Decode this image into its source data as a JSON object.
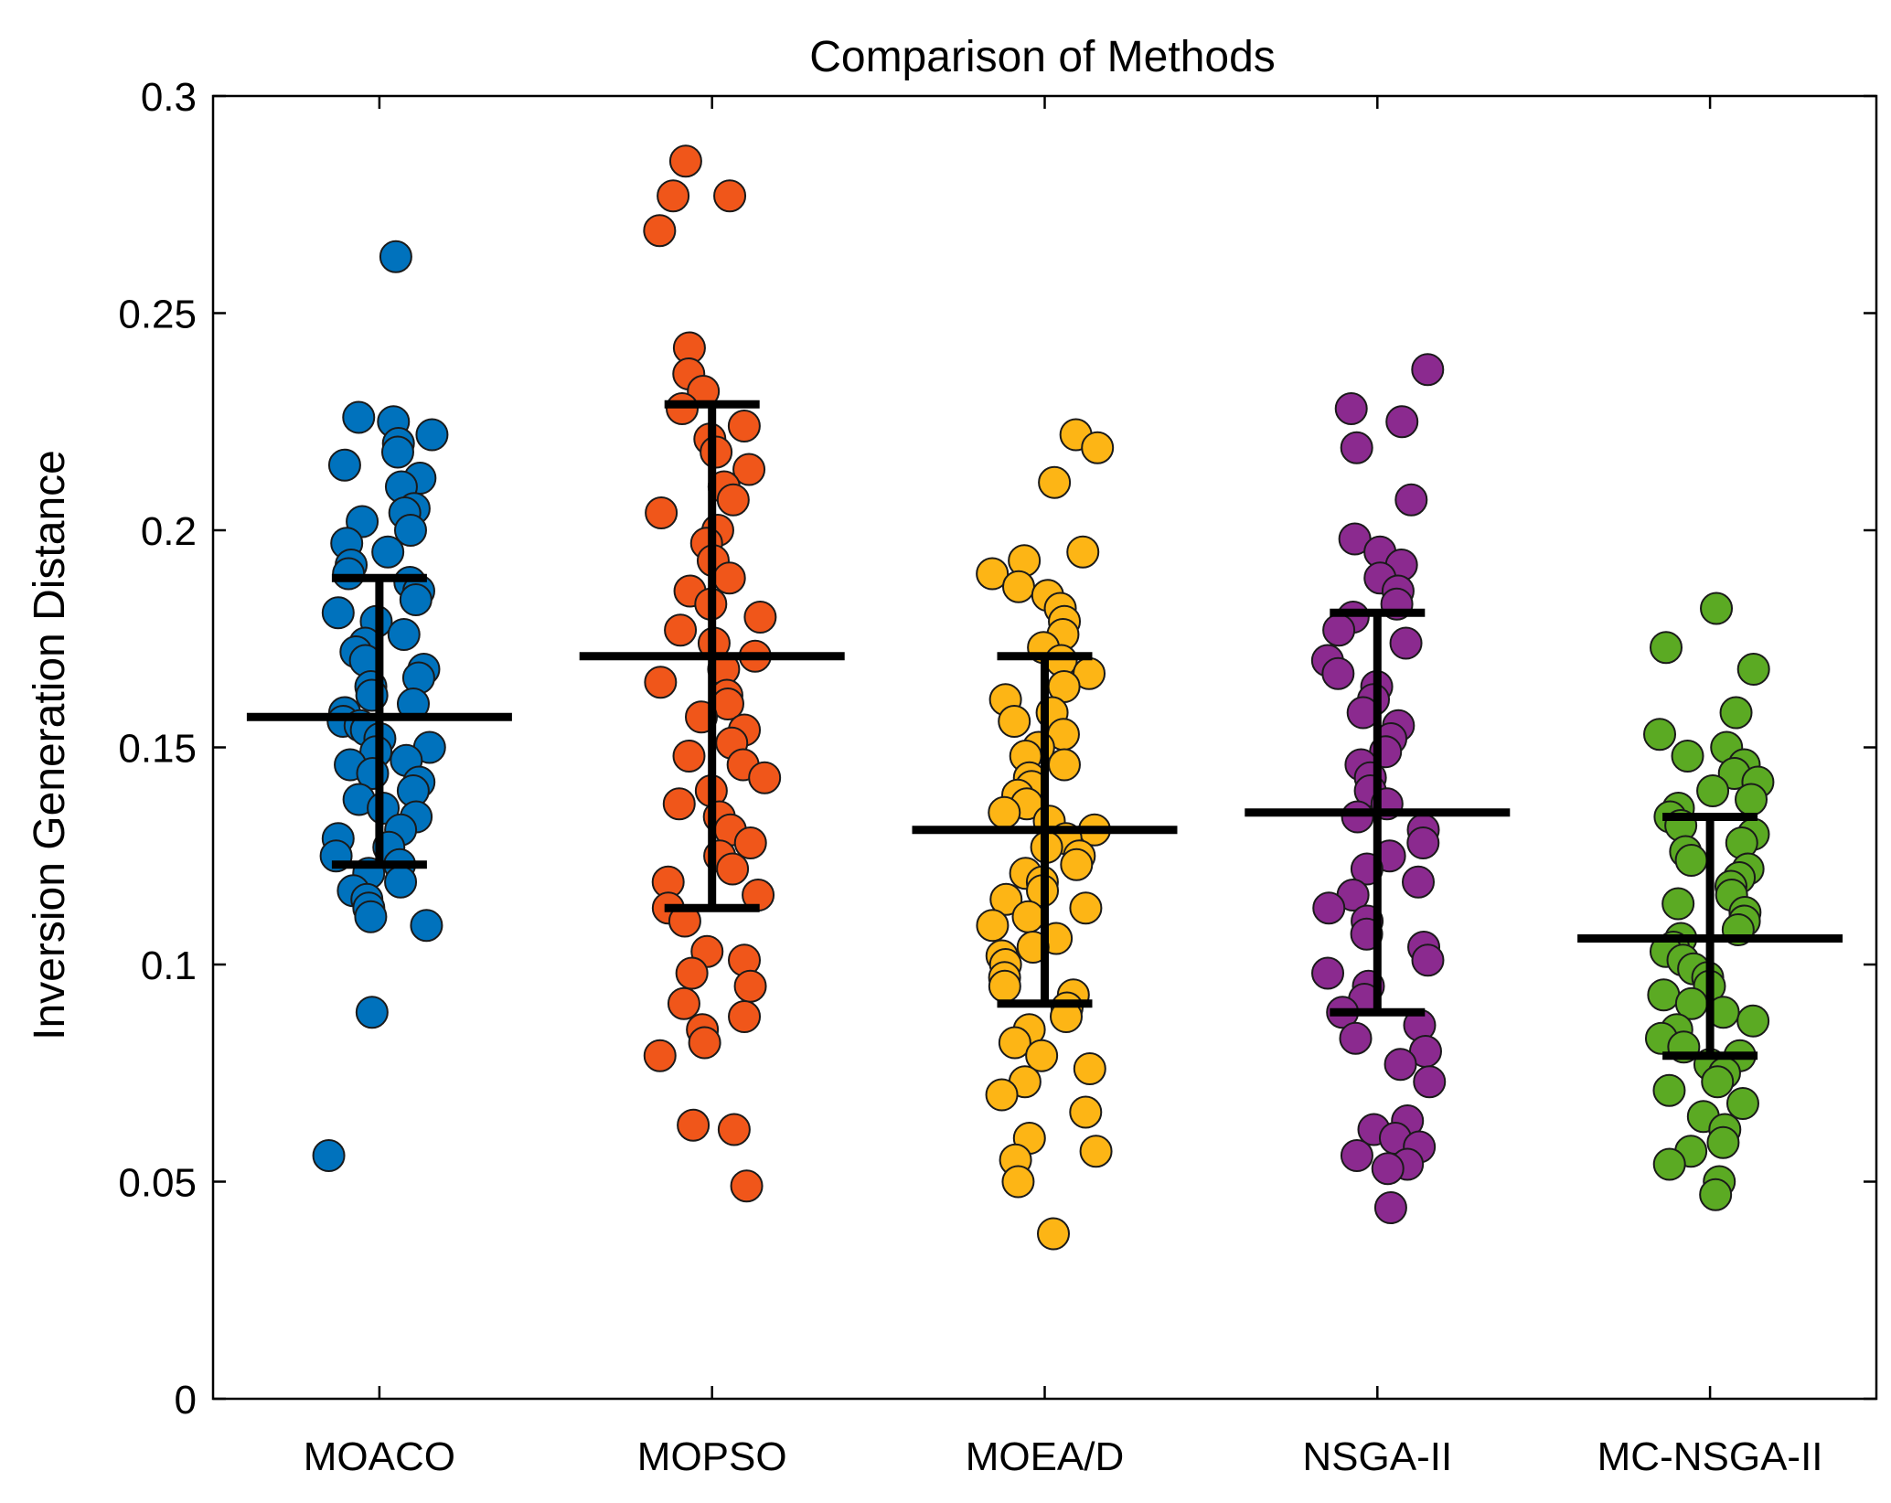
{
  "chart_data": {
    "type": "scatter",
    "title": "Comparison of Methods",
    "xlabel": "",
    "ylabel": "Inversion Generation Distance",
    "ylim": [
      0,
      0.3
    ],
    "yticks": [
      0,
      0.05,
      0.1,
      0.15,
      0.2,
      0.25,
      0.3
    ],
    "ytick_labels": [
      "0",
      "0.05",
      "0.1",
      "0.15",
      "0.2",
      "0.25",
      "0.3"
    ],
    "categories": [
      "MOACO",
      "MOPSO",
      "MOEA/D",
      "NSGA-II",
      "MC-NSGA-II"
    ],
    "grid": false,
    "legend": "none",
    "series": [
      {
        "category": "MOACO",
        "color": "#0072BD",
        "mean": 0.157,
        "sd_upper": 0.189,
        "sd_lower": 0.123,
        "values": [
          0.263,
          0.226,
          0.225,
          0.222,
          0.22,
          0.218,
          0.215,
          0.212,
          0.21,
          0.205,
          0.204,
          0.202,
          0.2,
          0.197,
          0.195,
          0.192,
          0.19,
          0.188,
          0.186,
          0.184,
          0.181,
          0.179,
          0.176,
          0.174,
          0.172,
          0.17,
          0.168,
          0.166,
          0.164,
          0.162,
          0.16,
          0.158,
          0.156,
          0.155,
          0.154,
          0.152,
          0.15,
          0.149,
          0.147,
          0.146,
          0.144,
          0.142,
          0.14,
          0.138,
          0.136,
          0.134,
          0.131,
          0.129,
          0.127,
          0.125,
          0.123,
          0.121,
          0.119,
          0.117,
          0.115,
          0.113,
          0.111,
          0.109,
          0.089,
          0.056
        ]
      },
      {
        "category": "MOPSO",
        "color": "#F0561A",
        "mean": 0.171,
        "sd_upper": 0.229,
        "sd_lower": 0.113,
        "values": [
          0.285,
          0.277,
          0.277,
          0.269,
          0.242,
          0.236,
          0.232,
          0.228,
          0.224,
          0.221,
          0.218,
          0.214,
          0.21,
          0.207,
          0.204,
          0.2,
          0.197,
          0.193,
          0.189,
          0.186,
          0.183,
          0.18,
          0.177,
          0.174,
          0.171,
          0.168,
          0.165,
          0.162,
          0.16,
          0.157,
          0.154,
          0.151,
          0.148,
          0.146,
          0.143,
          0.14,
          0.137,
          0.134,
          0.131,
          0.128,
          0.125,
          0.122,
          0.119,
          0.116,
          0.113,
          0.11,
          0.103,
          0.101,
          0.098,
          0.095,
          0.091,
          0.088,
          0.085,
          0.082,
          0.079,
          0.063,
          0.062,
          0.049
        ]
      },
      {
        "category": "MOEA/D",
        "color": "#FDB515",
        "mean": 0.131,
        "sd_upper": 0.171,
        "sd_lower": 0.091,
        "values": [
          0.222,
          0.219,
          0.211,
          0.195,
          0.193,
          0.19,
          0.187,
          0.185,
          0.182,
          0.179,
          0.176,
          0.173,
          0.17,
          0.167,
          0.164,
          0.161,
          0.158,
          0.156,
          0.153,
          0.15,
          0.148,
          0.146,
          0.143,
          0.141,
          0.139,
          0.137,
          0.135,
          0.133,
          0.131,
          0.129,
          0.127,
          0.125,
          0.123,
          0.121,
          0.119,
          0.117,
          0.115,
          0.113,
          0.111,
          0.109,
          0.106,
          0.104,
          0.102,
          0.1,
          0.097,
          0.095,
          0.093,
          0.09,
          0.088,
          0.085,
          0.082,
          0.079,
          0.076,
          0.073,
          0.07,
          0.066,
          0.06,
          0.057,
          0.055,
          0.05,
          0.038
        ]
      },
      {
        "category": "NSGA-II",
        "color": "#8B2A8F",
        "mean": 0.135,
        "sd_upper": 0.181,
        "sd_lower": 0.089,
        "values": [
          0.237,
          0.228,
          0.225,
          0.219,
          0.207,
          0.198,
          0.195,
          0.192,
          0.189,
          0.186,
          0.183,
          0.18,
          0.177,
          0.174,
          0.17,
          0.167,
          0.164,
          0.161,
          0.158,
          0.155,
          0.152,
          0.149,
          0.146,
          0.143,
          0.14,
          0.137,
          0.134,
          0.131,
          0.128,
          0.125,
          0.122,
          0.119,
          0.116,
          0.113,
          0.11,
          0.107,
          0.104,
          0.101,
          0.098,
          0.095,
          0.092,
          0.089,
          0.086,
          0.083,
          0.08,
          0.077,
          0.073,
          0.064,
          0.062,
          0.06,
          0.058,
          0.056,
          0.054,
          0.053,
          0.044
        ]
      },
      {
        "category": "MC-NSGA-II",
        "color": "#5BAA23",
        "mean": 0.106,
        "sd_upper": 0.134,
        "sd_lower": 0.079,
        "values": [
          0.182,
          0.173,
          0.168,
          0.158,
          0.153,
          0.15,
          0.148,
          0.146,
          0.144,
          0.142,
          0.14,
          0.138,
          0.136,
          0.134,
          0.132,
          0.13,
          0.128,
          0.126,
          0.124,
          0.122,
          0.12,
          0.118,
          0.116,
          0.114,
          0.112,
          0.11,
          0.108,
          0.106,
          0.104,
          0.103,
          0.101,
          0.099,
          0.097,
          0.095,
          0.093,
          0.091,
          0.089,
          0.087,
          0.085,
          0.083,
          0.081,
          0.079,
          0.077,
          0.075,
          0.073,
          0.071,
          0.068,
          0.065,
          0.062,
          0.059,
          0.057,
          0.054,
          0.05,
          0.047
        ]
      }
    ]
  }
}
